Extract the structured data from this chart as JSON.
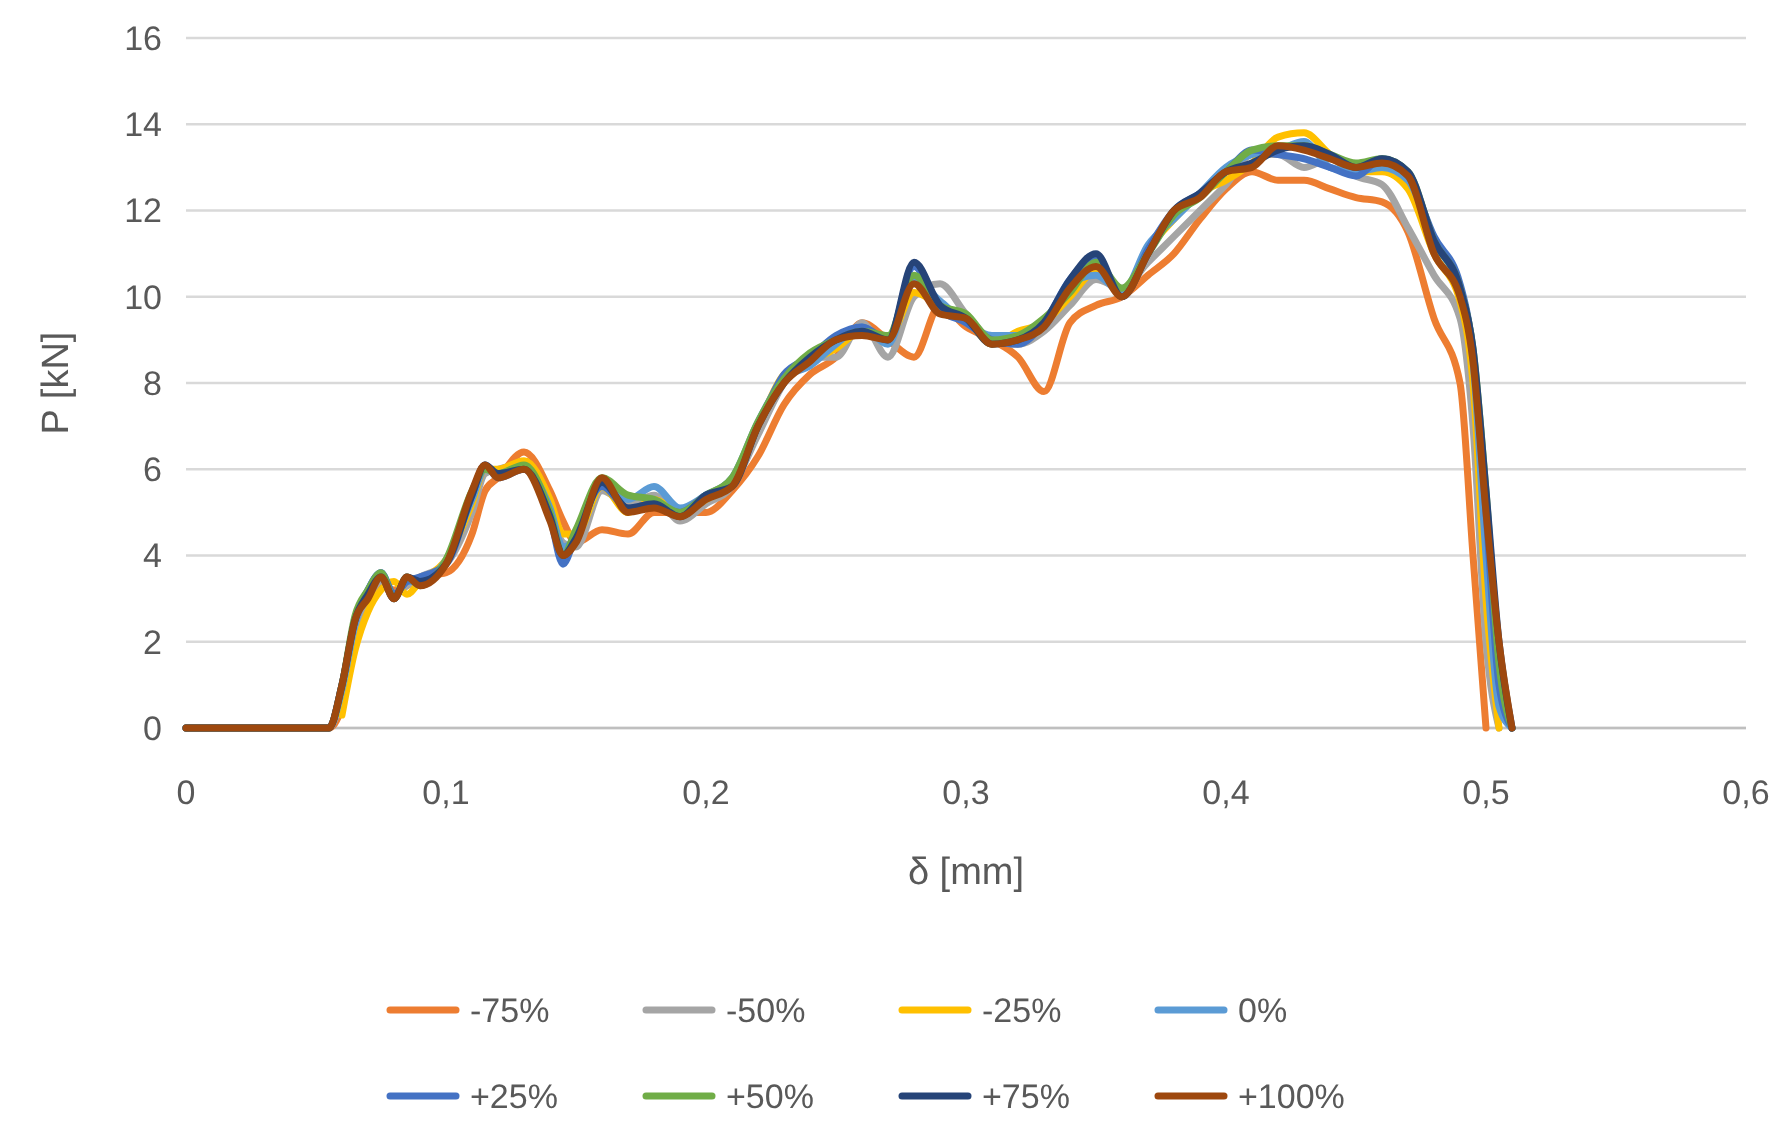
{
  "chart_data": {
    "type": "line",
    "xlabel": "δ [mm]",
    "ylabel": "P [kN]",
    "x": [
      0,
      0.055,
      0.06,
      0.065,
      0.07,
      0.075,
      0.08,
      0.085,
      0.09,
      0.1,
      0.11,
      0.115,
      0.12,
      0.13,
      0.14,
      0.145,
      0.15,
      0.16,
      0.17,
      0.18,
      0.19,
      0.2,
      0.21,
      0.22,
      0.23,
      0.24,
      0.25,
      0.26,
      0.27,
      0.28,
      0.29,
      0.3,
      0.31,
      0.32,
      0.33,
      0.34,
      0.35,
      0.36,
      0.37,
      0.38,
      0.39,
      0.4,
      0.41,
      0.42,
      0.43,
      0.44,
      0.45,
      0.46,
      0.47,
      0.48,
      0.49,
      0.495,
      0.5,
      0.505,
      0.51
    ],
    "series": [
      {
        "name": "-75%",
        "color": "#ed7d31",
        "values": [
          0,
          0,
          0.5,
          2.0,
          2.8,
          3.3,
          3.2,
          3.3,
          3.5,
          3.6,
          4.5,
          5.5,
          5.8,
          6.4,
          5.5,
          4.8,
          4.3,
          4.6,
          4.5,
          5.0,
          5.0,
          5.0,
          5.5,
          6.3,
          7.5,
          8.2,
          8.6,
          9.4,
          9.0,
          8.6,
          9.8,
          9.3,
          9.0,
          8.6,
          7.8,
          9.4,
          9.8,
          10.0,
          10.5,
          11.0,
          11.8,
          12.5,
          12.9,
          12.7,
          12.7,
          12.5,
          12.3,
          12.2,
          11.5,
          9.5,
          8.0,
          4.0,
          0,
          null,
          null
        ]
      },
      {
        "name": "-50%",
        "color": "#a5a5a5",
        "values": [
          0,
          0,
          0.8,
          2.3,
          3.0,
          3.4,
          3.1,
          3.3,
          3.5,
          3.8,
          5.0,
          5.9,
          6.0,
          6.1,
          5.0,
          4.3,
          4.2,
          5.5,
          5.2,
          5.4,
          4.8,
          5.2,
          5.6,
          6.8,
          8.0,
          8.6,
          8.6,
          9.4,
          8.6,
          10.0,
          10.3,
          9.6,
          9.0,
          8.9,
          9.2,
          9.8,
          10.4,
          10.2,
          10.8,
          11.4,
          12.0,
          12.6,
          13.3,
          13.3,
          13.0,
          13.2,
          12.8,
          12.6,
          11.6,
          10.5,
          9.5,
          7.0,
          2.0,
          0,
          null
        ]
      },
      {
        "name": "-25%",
        "color": "#ffc000",
        "values": [
          null,
          null,
          0.3,
          1.8,
          2.7,
          3.2,
          3.4,
          3.1,
          3.4,
          3.9,
          5.2,
          6.0,
          6.0,
          6.2,
          5.3,
          4.5,
          4.5,
          5.6,
          5.0,
          5.3,
          5.0,
          5.3,
          5.7,
          7.0,
          8.2,
          8.5,
          8.8,
          9.2,
          9.0,
          10.1,
          9.8,
          9.5,
          8.9,
          9.2,
          9.4,
          10.0,
          10.6,
          10.1,
          11.1,
          11.8,
          12.4,
          12.7,
          13.1,
          13.7,
          13.8,
          13.3,
          12.9,
          12.9,
          12.5,
          11.0,
          9.9,
          8.0,
          3.0,
          0,
          null
        ]
      },
      {
        "name": "0%",
        "color": "#5b9bd5",
        "values": [
          0,
          0,
          0.9,
          2.4,
          3.2,
          3.6,
          3.1,
          3.4,
          3.4,
          3.9,
          5.3,
          6.0,
          5.9,
          6.0,
          5.1,
          4.2,
          4.4,
          5.7,
          5.3,
          5.6,
          5.1,
          5.4,
          5.8,
          7.1,
          8.1,
          8.4,
          8.9,
          9.3,
          8.9,
          10.4,
          9.9,
          9.4,
          9.1,
          9.1,
          9.3,
          10.3,
          10.5,
          10.1,
          11.2,
          11.8,
          12.4,
          13.0,
          13.3,
          13.4,
          13.6,
          13.0,
          12.9,
          13.0,
          12.7,
          11.3,
          10.1,
          8.5,
          4.0,
          0.5,
          0
        ]
      },
      {
        "name": "+25%",
        "color": "#4472c4",
        "values": [
          0,
          0,
          1,
          2.5,
          3.2,
          3.6,
          3.1,
          3.4,
          3.5,
          3.8,
          5.4,
          6.1,
          5.8,
          6.0,
          4.9,
          3.8,
          4.5,
          5.6,
          5.1,
          5.2,
          5.0,
          5.4,
          5.7,
          7.0,
          8.2,
          8.6,
          9.1,
          9.3,
          9.0,
          10.7,
          9.7,
          9.4,
          9.0,
          8.9,
          9.4,
          10.4,
          10.9,
          10.0,
          11.1,
          12.0,
          12.4,
          12.9,
          13.4,
          13.3,
          13.2,
          13.0,
          12.8,
          13.2,
          12.8,
          11.4,
          10.3,
          8.7,
          5.0,
          1.0,
          0
        ]
      },
      {
        "name": "+50%",
        "color": "#70ad47",
        "values": [
          0,
          0,
          1,
          2.6,
          3.2,
          3.6,
          3.0,
          3.5,
          3.3,
          3.9,
          5.5,
          6.0,
          5.9,
          6.1,
          5.0,
          4.0,
          4.6,
          5.8,
          5.4,
          5.3,
          5.0,
          5.4,
          5.8,
          7.1,
          8.1,
          8.7,
          9.0,
          9.2,
          9.1,
          10.5,
          9.8,
          9.6,
          9.0,
          9.1,
          9.5,
          10.1,
          10.8,
          10.2,
          11.0,
          11.9,
          12.3,
          12.9,
          13.4,
          13.5,
          13.5,
          13.3,
          13.1,
          13.2,
          12.9,
          11.3,
          10.2,
          8.8,
          5.5,
          1.5,
          0
        ]
      },
      {
        "name": "+75%",
        "color": "#264478",
        "values": [
          0,
          0,
          1,
          2.5,
          3.1,
          3.5,
          3.0,
          3.5,
          3.4,
          3.8,
          5.4,
          6.1,
          5.9,
          6.0,
          4.9,
          4.0,
          4.4,
          5.7,
          5.1,
          5.2,
          4.9,
          5.4,
          5.6,
          7.0,
          8.0,
          8.6,
          9.0,
          9.2,
          9.0,
          10.8,
          9.8,
          9.5,
          8.9,
          9.0,
          9.4,
          10.4,
          11.0,
          10.0,
          11.0,
          12.0,
          12.4,
          12.9,
          13.1,
          13.4,
          13.5,
          13.3,
          13.0,
          13.2,
          12.9,
          11.3,
          10.2,
          8.8,
          5.5,
          2.0,
          0
        ]
      },
      {
        "name": "+100%",
        "color": "#9e480e",
        "values": [
          0,
          0,
          1,
          2.5,
          3.0,
          3.5,
          3.0,
          3.5,
          3.3,
          3.8,
          5.5,
          6.1,
          5.8,
          6.0,
          4.8,
          4.0,
          4.3,
          5.8,
          5.0,
          5.1,
          4.9,
          5.3,
          5.6,
          7.0,
          8.0,
          8.5,
          9.0,
          9.1,
          9.0,
          10.3,
          9.6,
          9.5,
          8.9,
          9.0,
          9.3,
          10.2,
          10.7,
          10.0,
          11.0,
          12.0,
          12.3,
          12.9,
          13.0,
          13.5,
          13.4,
          13.2,
          13.0,
          13.1,
          12.8,
          11.0,
          10.0,
          8.5,
          5.0,
          2.0,
          0
        ]
      }
    ],
    "xlim": [
      0,
      0.6
    ],
    "xticks": [
      0,
      {
        "value": 0.1,
        "label": "0,1"
      },
      {
        "value": 0.2,
        "label": "0,2"
      },
      {
        "value": 0.3,
        "label": "0,3"
      },
      {
        "value": 0.4,
        "label": "0,4"
      },
      {
        "value": 0.5,
        "label": "0,5"
      },
      {
        "value": 0.6,
        "label": "0,6"
      }
    ],
    "ylim": [
      0,
      16
    ],
    "yticks": [
      0,
      2,
      4,
      6,
      8,
      10,
      12,
      14,
      16
    ],
    "grid": "y",
    "legend": "bottom",
    "marker": "none",
    "line_style": "solid"
  }
}
